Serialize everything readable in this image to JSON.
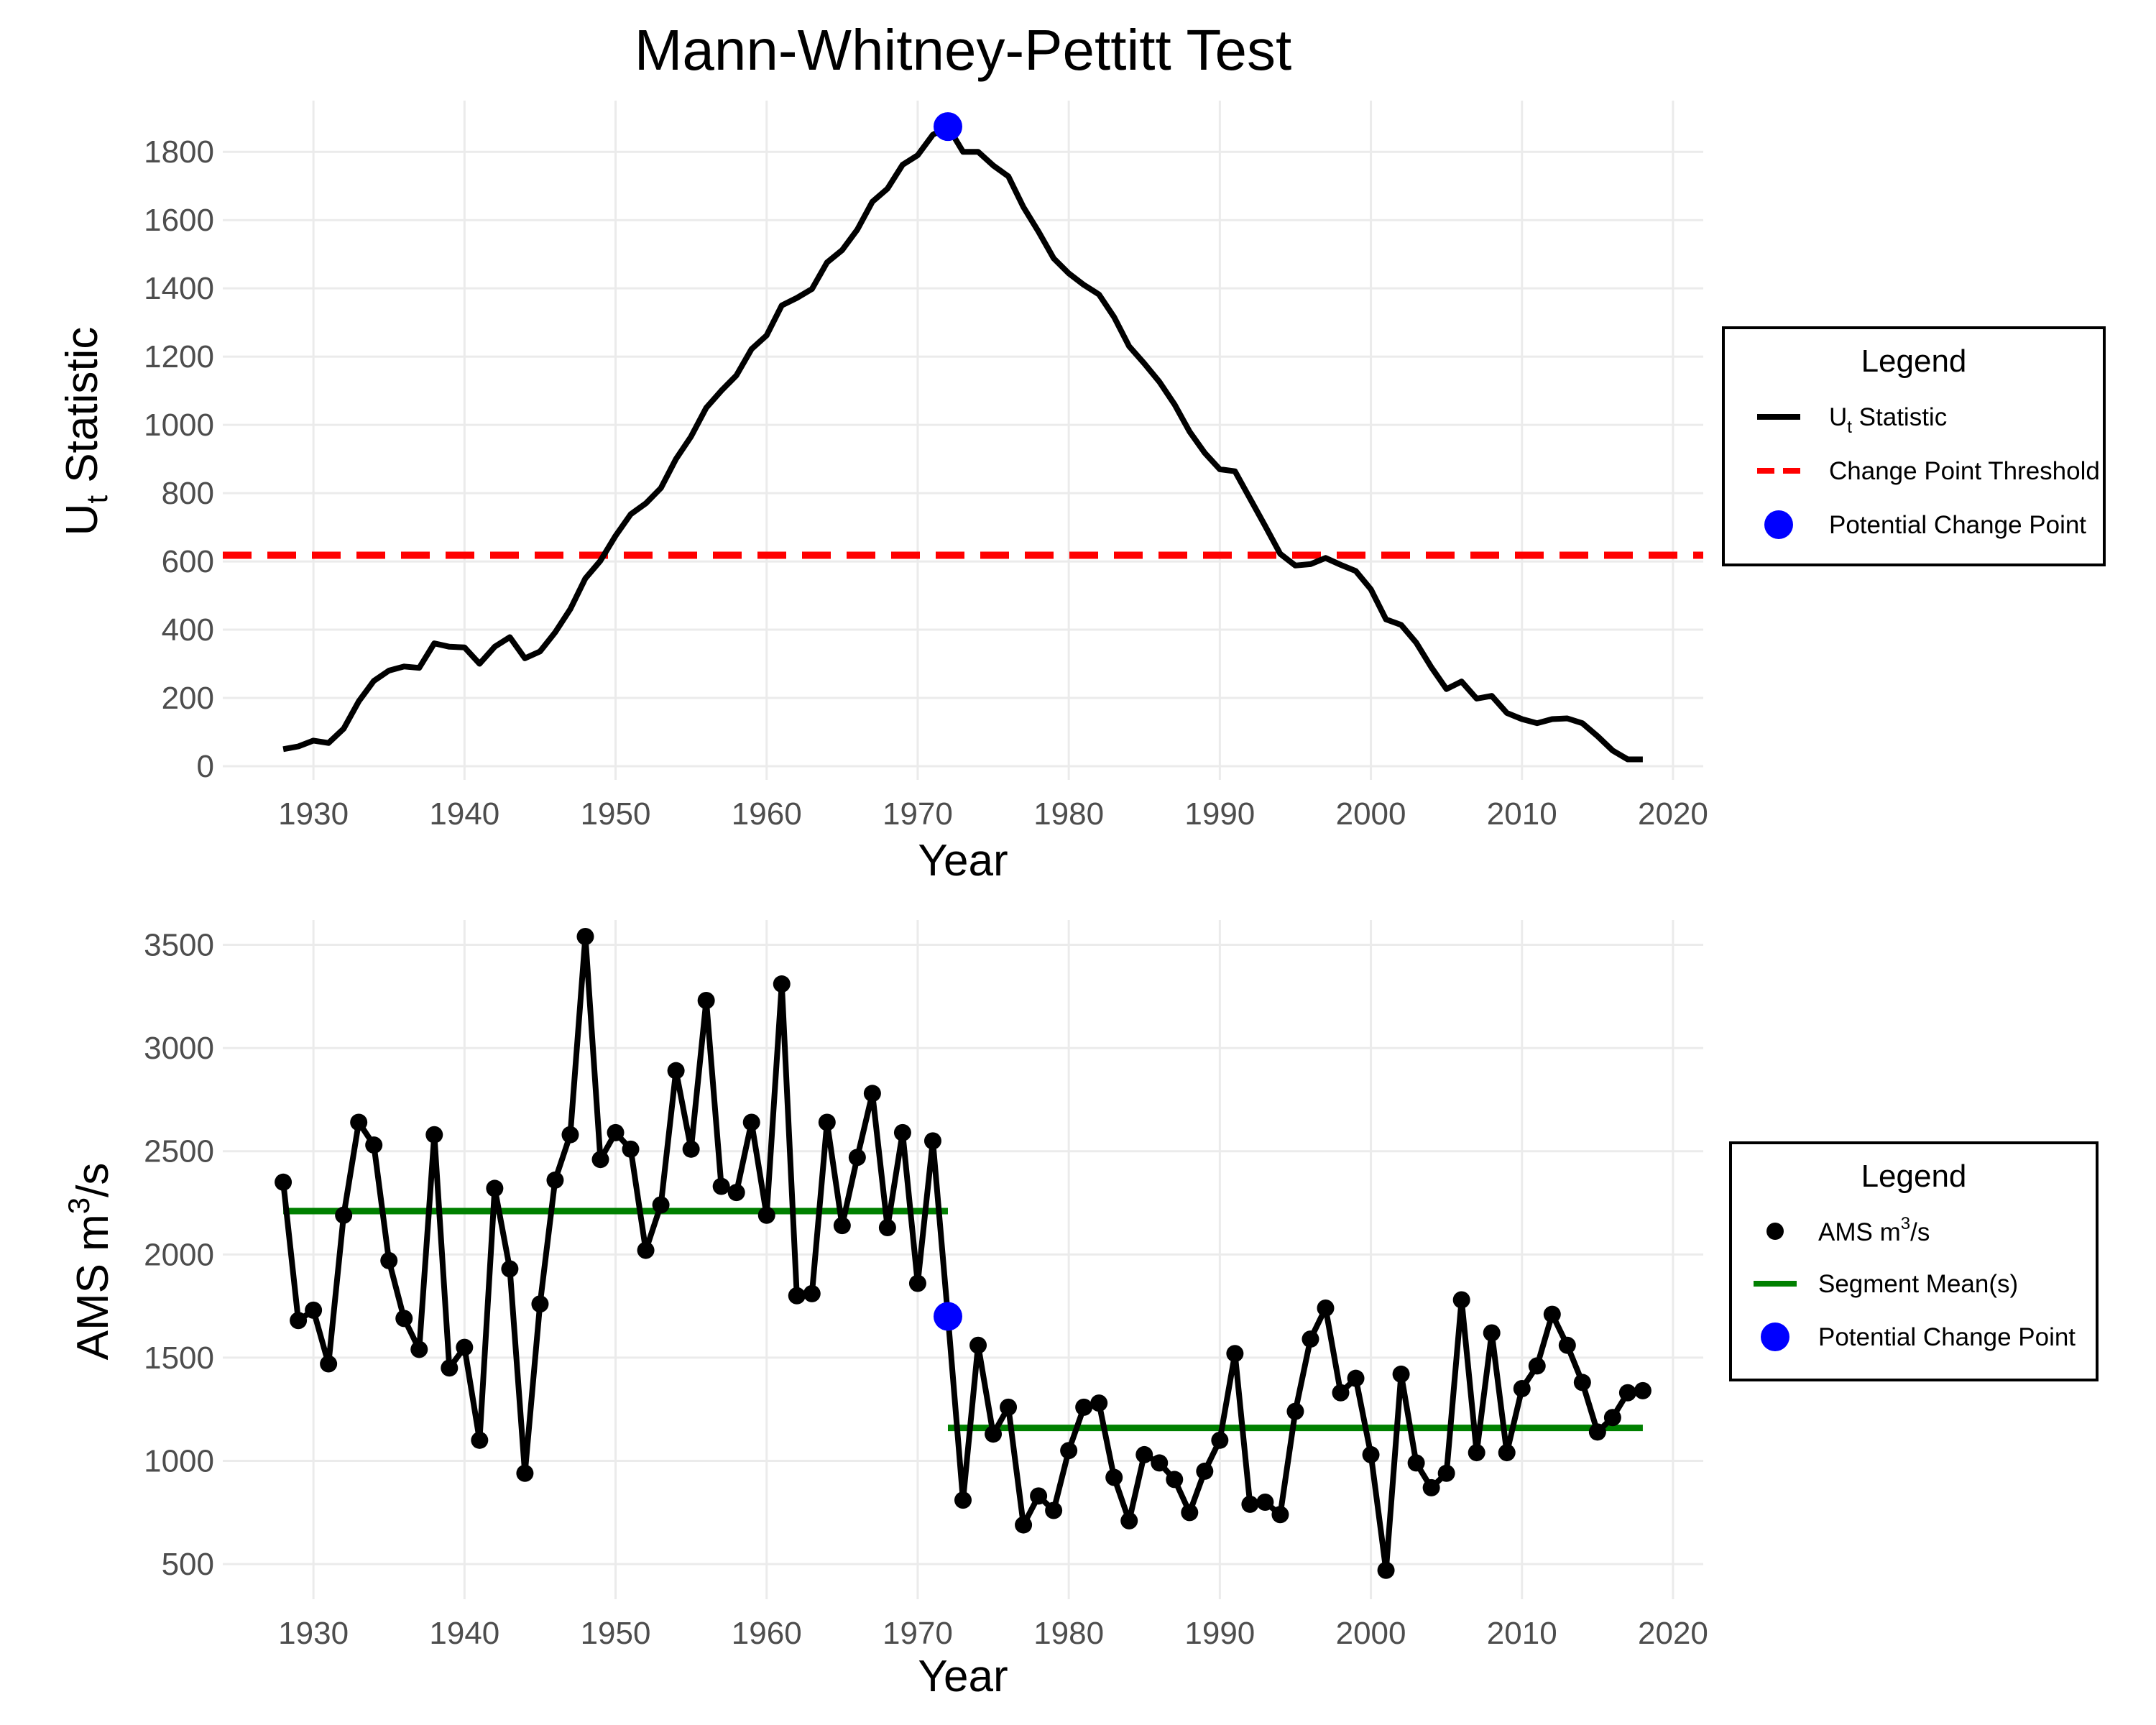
{
  "title": "Mann-Whitney-Pettitt Test",
  "colors": {
    "line": "#000000",
    "threshold": "#ff0000",
    "change_point": "#0000ff",
    "segment_mean": "#008000",
    "grid": "#ebebeb"
  },
  "chart_data": [
    {
      "type": "line",
      "xlabel": "Year",
      "ylabel_main": "U",
      "ylabel_sub": "t",
      "ylabel_rest": " Statistic",
      "xlim": [
        1924,
        2022
      ],
      "ylim": [
        -40,
        1950
      ],
      "xticks": [
        1930,
        1940,
        1950,
        1960,
        1970,
        1980,
        1990,
        2000,
        2010,
        2020
      ],
      "yticks": [
        0,
        200,
        400,
        600,
        800,
        1000,
        1200,
        1400,
        1600,
        1800
      ],
      "grid": true,
      "series": [
        {
          "name": "Ut Statistic",
          "x": [
            1928,
            1929,
            1930,
            1931,
            1932,
            1933,
            1934,
            1935,
            1936,
            1937,
            1938,
            1939,
            1940,
            1941,
            1942,
            1943,
            1944,
            1945,
            1946,
            1947,
            1948,
            1949,
            1950,
            1951,
            1952,
            1953,
            1954,
            1955,
            1956,
            1957,
            1958,
            1959,
            1960,
            1961,
            1962,
            1963,
            1964,
            1965,
            1966,
            1967,
            1968,
            1969,
            1970,
            1971,
            1972,
            1973,
            1974,
            1975,
            1976,
            1977,
            1978,
            1979,
            1980,
            1981,
            1982,
            1983,
            1984,
            1985,
            1986,
            1987,
            1988,
            1989,
            1990,
            1991,
            1992,
            1993,
            1994,
            1995,
            1996,
            1997,
            1998,
            1999,
            2000,
            2001,
            2002,
            2003,
            2004,
            2005,
            2006,
            2007,
            2008,
            2009,
            2010,
            2011,
            2012,
            2013,
            2014,
            2015,
            2016,
            2017,
            2018
          ],
          "y": [
            50,
            58,
            75,
            68,
            110,
            190,
            250,
            280,
            292,
            288,
            360,
            350,
            348,
            300,
            350,
            378,
            316,
            336,
            392,
            460,
            550,
            602,
            675,
            738,
            770,
            815,
            900,
            966,
            1050,
            1100,
            1145,
            1222,
            1262,
            1350,
            1372,
            1398,
            1476,
            1512,
            1572,
            1654,
            1692,
            1762,
            1790,
            1850,
            1874,
            1800,
            1800,
            1760,
            1728,
            1638,
            1566,
            1488,
            1444,
            1410,
            1382,
            1316,
            1230,
            1180,
            1126,
            1060,
            980,
            918,
            870,
            864,
            784,
            704,
            622,
            588,
            592,
            610,
            590,
            572,
            518,
            430,
            414,
            362,
            290,
            226,
            248,
            198,
            206,
            156,
            138,
            126,
            138,
            140,
            126,
            88,
            46,
            20,
            20
          ]
        }
      ],
      "threshold": {
        "name": "Change Point Threshold",
        "y": 618
      },
      "change_point": {
        "name": "Potential Change Point",
        "x": 1972,
        "y": 1874
      },
      "legend": {
        "title": "Legend",
        "placement": "right",
        "items": [
          {
            "label_main": "U",
            "label_sub": "t",
            "label_rest": " Statistic"
          },
          {
            "label_main": "Change Point Threshold"
          },
          {
            "label_main": "Potential Change Point"
          }
        ]
      }
    },
    {
      "type": "line",
      "xlabel": "Year",
      "ylabel_main": "AMS m",
      "ylabel_sup": "3",
      "ylabel_rest": "/s",
      "xlim": [
        1924,
        2022
      ],
      "ylim": [
        330,
        3620
      ],
      "xticks": [
        1930,
        1940,
        1950,
        1960,
        1970,
        1980,
        1990,
        2000,
        2010,
        2020
      ],
      "yticks": [
        500,
        1000,
        1500,
        2000,
        2500,
        3000,
        3500
      ],
      "grid": true,
      "series": [
        {
          "name": "AMS m3/s",
          "x": [
            1928,
            1929,
            1930,
            1931,
            1932,
            1933,
            1934,
            1935,
            1936,
            1937,
            1938,
            1939,
            1940,
            1941,
            1942,
            1943,
            1944,
            1945,
            1946,
            1947,
            1948,
            1949,
            1950,
            1951,
            1952,
            1953,
            1954,
            1955,
            1956,
            1957,
            1958,
            1959,
            1960,
            1961,
            1962,
            1963,
            1964,
            1965,
            1966,
            1967,
            1968,
            1969,
            1970,
            1971,
            1972,
            1973,
            1974,
            1975,
            1976,
            1977,
            1978,
            1979,
            1980,
            1981,
            1982,
            1983,
            1984,
            1985,
            1986,
            1987,
            1988,
            1989,
            1990,
            1991,
            1992,
            1993,
            1994,
            1995,
            1996,
            1997,
            1998,
            1999,
            2000,
            2001,
            2002,
            2003,
            2004,
            2005,
            2006,
            2007,
            2008,
            2009,
            2010,
            2011,
            2012,
            2013,
            2014,
            2015,
            2016,
            2017,
            2018
          ],
          "y": [
            2350,
            1680,
            1730,
            1470,
            2190,
            2640,
            2530,
            1970,
            1690,
            1540,
            2580,
            1450,
            1550,
            1100,
            2320,
            1930,
            940,
            1760,
            2360,
            2580,
            3540,
            2460,
            2590,
            2510,
            2020,
            2240,
            2890,
            2510,
            3230,
            2330,
            2300,
            2640,
            2190,
            3310,
            1800,
            1810,
            2640,
            2140,
            2470,
            2780,
            2130,
            2590,
            1860,
            2550,
            1700,
            810,
            1560,
            1130,
            1260,
            690,
            830,
            760,
            1050,
            1260,
            1280,
            920,
            710,
            1030,
            990,
            910,
            750,
            950,
            1100,
            1520,
            790,
            800,
            740,
            1240,
            1590,
            1740,
            1330,
            1400,
            1030,
            470,
            1420,
            990,
            870,
            940,
            1780,
            1040,
            1620,
            1040,
            1350,
            1460,
            1710,
            1560,
            1380,
            1140,
            1210,
            1330,
            1340
          ]
        }
      ],
      "segment_means": [
        {
          "x_start": 1928,
          "x_end": 1972,
          "y": 2210
        },
        {
          "x_start": 1972,
          "x_end": 2018,
          "y": 1160
        }
      ],
      "change_point": {
        "name": "Potential Change Point",
        "x": 1972,
        "y": 1700
      },
      "legend": {
        "title": "Legend",
        "placement": "right",
        "items": [
          {
            "label_main": "AMS m",
            "label_sup": "3",
            "label_rest": "/s"
          },
          {
            "label_main": "Segment Mean(s)"
          },
          {
            "label_main": "Potential Change Point"
          }
        ]
      }
    }
  ]
}
